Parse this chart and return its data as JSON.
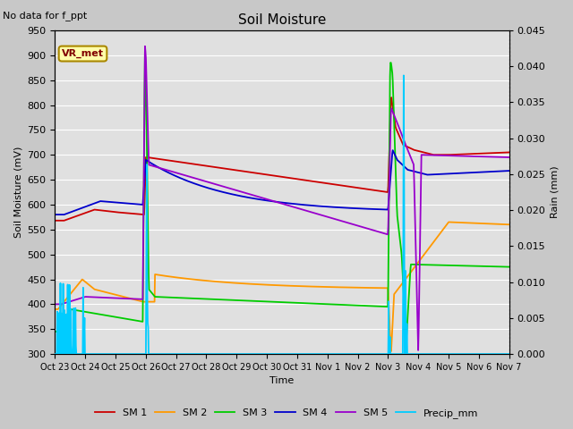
{
  "title": "Soil Moisture",
  "xlabel": "Time",
  "ylabel_left": "Soil Moisture (mV)",
  "ylabel_right": "Rain (mm)",
  "annotation": "No data for f_ppt",
  "box_label": "VR_met",
  "ylim_left": [
    300,
    950
  ],
  "ylim_right": [
    0.0,
    0.045
  ],
  "yticks_left": [
    300,
    350,
    400,
    450,
    500,
    550,
    600,
    650,
    700,
    750,
    800,
    850,
    900,
    950
  ],
  "yticks_right": [
    0.0,
    0.005,
    0.01,
    0.015,
    0.02,
    0.025,
    0.03,
    0.035,
    0.04,
    0.045
  ],
  "plot_bg": "#e0e0e0",
  "fig_bg": "#c8c8c8",
  "grid_color": "#ffffff",
  "colors": {
    "SM1": "#cc0000",
    "SM2": "#ff9900",
    "SM3": "#00cc00",
    "SM4": "#0000cc",
    "SM5": "#9900cc",
    "Precip": "#00ccff"
  },
  "legend": [
    "SM 1",
    "SM 2",
    "SM 3",
    "SM 4",
    "SM 5",
    "Precip_mm"
  ],
  "x_tick_labels": [
    "Oct 23",
    "Oct 24",
    "Oct 25",
    "Oct 26",
    "Oct 27",
    "Oct 28",
    "Oct 29",
    "Oct 30",
    "Oct 31",
    "Nov 1",
    "Nov 2",
    "Nov 3",
    "Nov 3",
    "Nov 4",
    "Nov 5",
    "Nov 6",
    "Nov 7"
  ],
  "num_points": 1000
}
